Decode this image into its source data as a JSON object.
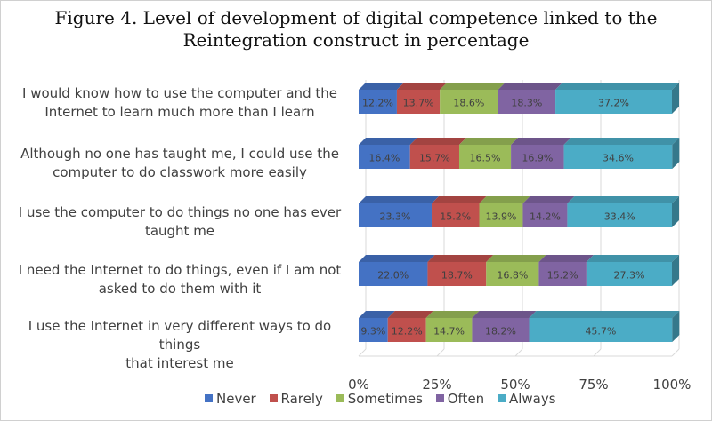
{
  "chart_data": {
    "type": "bar",
    "orientation": "horizontal-stacked-100",
    "title_lines": [
      "Figure 4. Level of development of digital competence linked to the",
      "Reintegration construct in percentage"
    ],
    "categories": [
      [
        "I would know how to use the computer and the",
        "Internet to learn much more than I learn"
      ],
      [
        "Although no one has taught me, I could use the",
        "computer to do classwork more easily"
      ],
      [
        "I use the computer to do things no one has ever",
        "taught me"
      ],
      [
        "I need the Internet to do things, even if I am not",
        "asked to do them with it"
      ],
      [
        "I use the Internet in very different ways to do things",
        "that interest me"
      ]
    ],
    "series": [
      {
        "name": "Never",
        "color": "#4472c4",
        "values": [
          12.2,
          16.4,
          23.3,
          22.0,
          9.3
        ],
        "labels": [
          "12.2%",
          "16.4%",
          "23.3%",
          "22.0%",
          "9.3%"
        ]
      },
      {
        "name": "Rarely",
        "color": "#c0504d",
        "values": [
          13.7,
          15.7,
          15.2,
          18.7,
          12.2
        ],
        "labels": [
          "13.7%",
          "15.7%",
          "15.2%",
          "18.7%",
          "12.2%"
        ]
      },
      {
        "name": "Sometimes",
        "color": "#9bbb59",
        "values": [
          18.6,
          16.5,
          13.9,
          16.8,
          14.7
        ],
        "labels": [
          "18.6%",
          "16.5%",
          "13.9%",
          "16.8%",
          "14.7%"
        ]
      },
      {
        "name": "Often",
        "color": "#8064a2",
        "values": [
          18.3,
          16.9,
          14.2,
          15.2,
          18.2
        ],
        "labels": [
          "18.3%",
          "16.9%",
          "14.2%",
          "15.2%",
          "18.2%"
        ]
      },
      {
        "name": "Always",
        "color": "#4bacc6",
        "values": [
          37.2,
          34.6,
          33.4,
          27.3,
          45.7
        ],
        "labels": [
          "37.2%",
          "34.6%",
          "33.4%",
          "27.3%",
          "45.7%"
        ]
      }
    ],
    "xaxis": {
      "range": [
        0,
        100
      ],
      "ticks": [
        "0%",
        "25%",
        "50%",
        "75%",
        "100%"
      ]
    },
    "legend_position": "bottom"
  }
}
